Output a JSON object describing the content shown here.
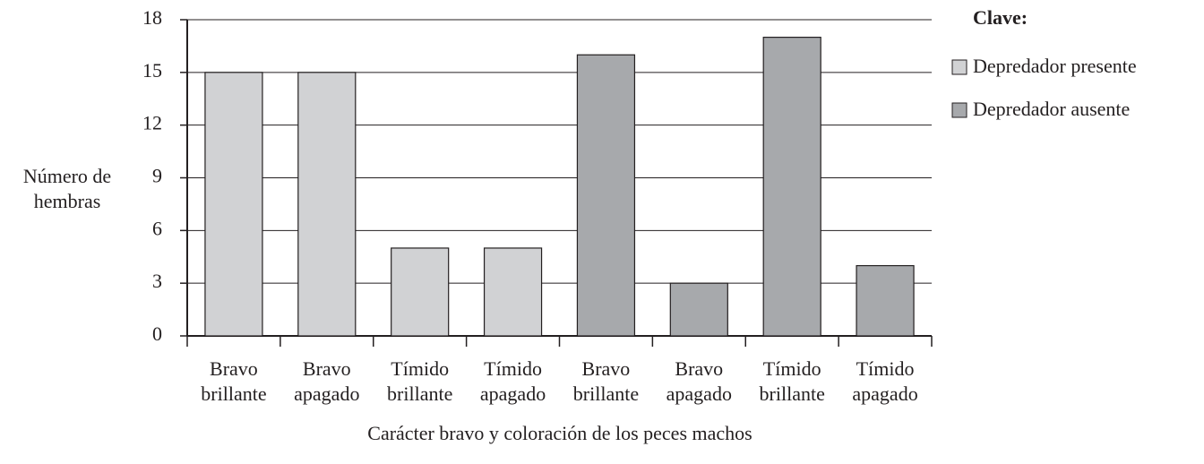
{
  "chart_data": {
    "type": "bar",
    "x_label": "Carácter bravo y coloración de los peces machos",
    "y_label": "Número de hembras",
    "legend_title": "Clave:",
    "categories": [
      "Bravo brillante",
      "Bravo apagado",
      "Tímido brillante",
      "Tímido apagado",
      "Bravo brillante",
      "Bravo apagado",
      "Tímido brillante",
      "Tímido apagado"
    ],
    "series": [
      {
        "name": "Depredador presente",
        "color": "#d1d2d4",
        "values": [
          15,
          15,
          5,
          5,
          null,
          null,
          null,
          null
        ]
      },
      {
        "name": "Depredador ausente",
        "color": "#a7a9ac",
        "values": [
          null,
          null,
          null,
          null,
          16,
          3,
          17,
          4
        ]
      }
    ],
    "ylim": [
      0,
      18
    ],
    "yticks": [
      0,
      3,
      6,
      9,
      12,
      15,
      18
    ],
    "grid": true,
    "legend": "right"
  }
}
